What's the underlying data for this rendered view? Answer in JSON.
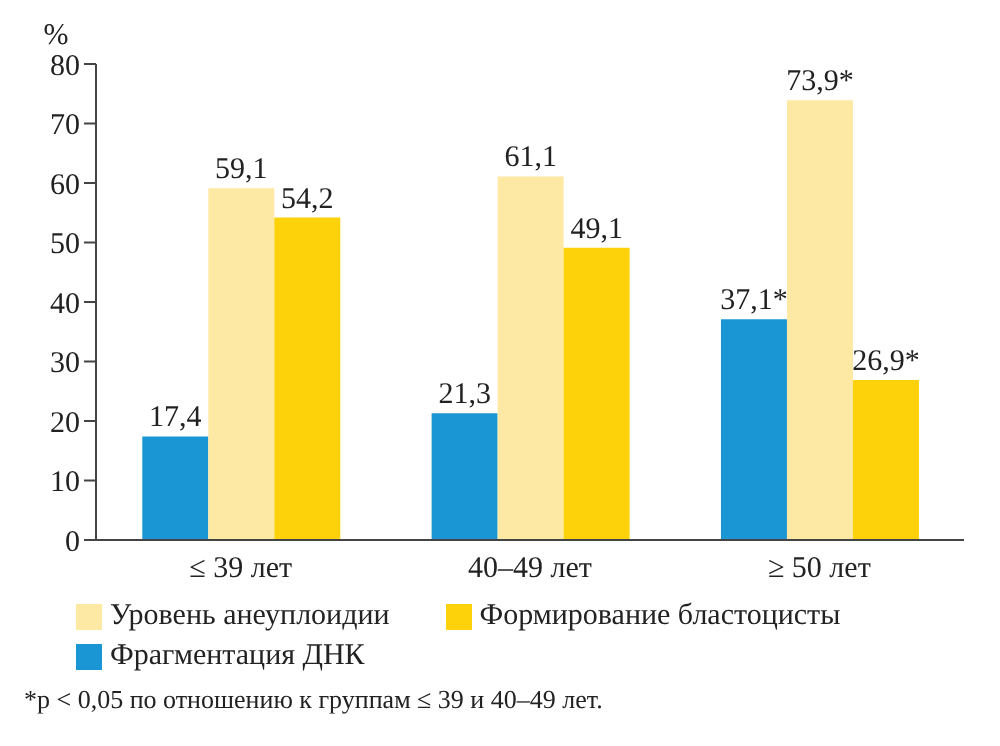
{
  "chart_data": {
    "type": "bar",
    "ylabel": "%",
    "categories": [
      "≤ 39 лет",
      "40–49 лет",
      "≥ 50 лет"
    ],
    "series": [
      {
        "name": "Фрагментация ДНК",
        "color": "#1a96d4",
        "values": [
          17.4,
          21.3,
          37.1
        ],
        "value_labels": [
          "17,4",
          "21,3",
          "37,1*"
        ]
      },
      {
        "name": "Уровень анеуплоидии",
        "color": "#fde8a4",
        "values": [
          59.1,
          61.1,
          73.9
        ],
        "value_labels": [
          "59,1",
          "61,1",
          "73,9*"
        ]
      },
      {
        "name": "Формирование бластоцисты",
        "color": "#fdd20a",
        "values": [
          54.2,
          49.1,
          26.9
        ],
        "value_labels": [
          "54,2",
          "49,1",
          "26,9*"
        ]
      }
    ],
    "ylim": [
      0,
      80
    ],
    "yticks": [
      0,
      10,
      20,
      30,
      40,
      50,
      60,
      70,
      80
    ],
    "grid": false,
    "legend": "bottom left",
    "annotations": [
      "*p < 0,05 по отношению к группам ≤ 39 и 40–49 лет."
    ]
  }
}
